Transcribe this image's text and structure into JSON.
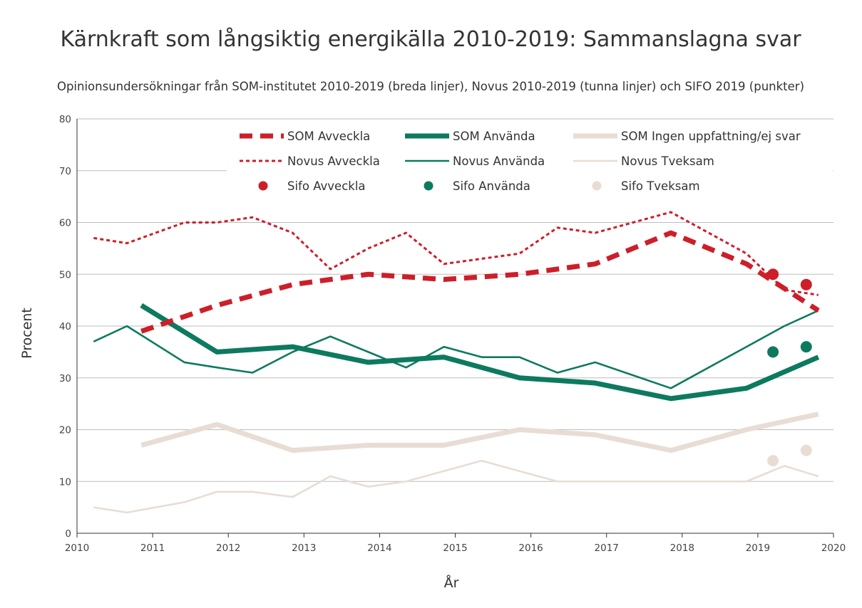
{
  "chart_data": {
    "type": "line",
    "title": "Kärnkraft som långsiktig energikälla 2010-2019: Sammanslagna svar",
    "subtitle": "Opinionsundersökningar från SOM-institutet 2010-2019 (breda linjer), Novus 2010-2019 (tunna linjer) och SIFO 2019 (punkter)",
    "xlabel": "År",
    "ylabel": "Procent",
    "xlim": [
      2010,
      2020
    ],
    "ylim": [
      0,
      80
    ],
    "x_ticks": [
      2010,
      2011,
      2012,
      2013,
      2014,
      2015,
      2016,
      2017,
      2018,
      2019,
      2020
    ],
    "y_ticks": [
      0,
      10,
      20,
      30,
      40,
      50,
      60,
      70,
      80
    ],
    "grid": true,
    "legend_position": "top-right",
    "series": [
      {
        "name": "SOM Avveckla",
        "style": "thick-dashed",
        "color": "#cc1f2a",
        "x": [
          2010.85,
          2011.85,
          2012.85,
          2013.85,
          2014.85,
          2015.85,
          2016.85,
          2017.85,
          2018.85,
          2019.8
        ],
        "values": [
          39,
          44,
          48,
          50,
          49,
          50,
          52,
          58,
          52,
          43
        ]
      },
      {
        "name": "SOM Använda",
        "style": "thick",
        "color": "#0d7a5f",
        "x": [
          2010.85,
          2011.85,
          2012.85,
          2013.85,
          2014.85,
          2015.85,
          2016.85,
          2017.85,
          2018.85,
          2019.8
        ],
        "values": [
          44,
          35,
          36,
          33,
          34,
          30,
          29,
          26,
          28,
          34
        ]
      },
      {
        "name": "SOM Ingen uppfattning/ej svar",
        "style": "thick",
        "color": "#e8ddd4",
        "x": [
          2010.85,
          2011.85,
          2012.85,
          2013.85,
          2014.85,
          2015.85,
          2016.85,
          2017.85,
          2018.85,
          2019.8
        ],
        "values": [
          17,
          21,
          16,
          17,
          17,
          20,
          19,
          16,
          20,
          23
        ]
      },
      {
        "name": "Novus Avveckla",
        "style": "thin-dashed",
        "color": "#cc1f2a",
        "x": [
          2010.22,
          2010.66,
          2011.42,
          2011.85,
          2012.32,
          2012.85,
          2013.35,
          2013.85,
          2014.35,
          2014.85,
          2015.35,
          2015.85,
          2016.35,
          2016.85,
          2017.85,
          2018.85,
          2019.35,
          2019.8
        ],
        "values": [
          57,
          56,
          60,
          60,
          61,
          58,
          51,
          55,
          58,
          52,
          53,
          54,
          59,
          58,
          62,
          54,
          47,
          46
        ]
      },
      {
        "name": "Novus Använda",
        "style": "thin",
        "color": "#0d7a5f",
        "x": [
          2010.22,
          2010.66,
          2011.42,
          2011.85,
          2012.32,
          2012.85,
          2013.35,
          2013.85,
          2014.35,
          2014.85,
          2015.35,
          2015.85,
          2016.35,
          2016.85,
          2017.85,
          2018.85,
          2019.35,
          2019.8
        ],
        "values": [
          37,
          40,
          33,
          32,
          31,
          35,
          38,
          35,
          32,
          36,
          34,
          34,
          31,
          33,
          28,
          36,
          40,
          43
        ]
      },
      {
        "name": "Novus Tveksam",
        "style": "thin",
        "color": "#e8ddd4",
        "x": [
          2010.22,
          2010.66,
          2011.42,
          2011.85,
          2012.32,
          2012.85,
          2013.35,
          2013.85,
          2014.35,
          2014.85,
          2015.35,
          2015.85,
          2016.35,
          2016.85,
          2017.85,
          2018.85,
          2019.35,
          2019.8
        ],
        "values": [
          5,
          4,
          6,
          8,
          8,
          7,
          11,
          9,
          10,
          12,
          14,
          12,
          10,
          10,
          10,
          10,
          13,
          11
        ]
      },
      {
        "name": "Sifo Avveckla",
        "style": "points",
        "color": "#cc1f2a",
        "x": [
          2019.2,
          2019.64
        ],
        "values": [
          50,
          48
        ]
      },
      {
        "name": "Sifo Använda",
        "style": "points",
        "color": "#0d7a5f",
        "x": [
          2019.2,
          2019.64
        ],
        "values": [
          35,
          36
        ]
      },
      {
        "name": "Sifo Tveksam",
        "style": "points",
        "color": "#e8ddd4",
        "x": [
          2019.2,
          2019.64
        ],
        "values": [
          14,
          16
        ]
      }
    ]
  }
}
